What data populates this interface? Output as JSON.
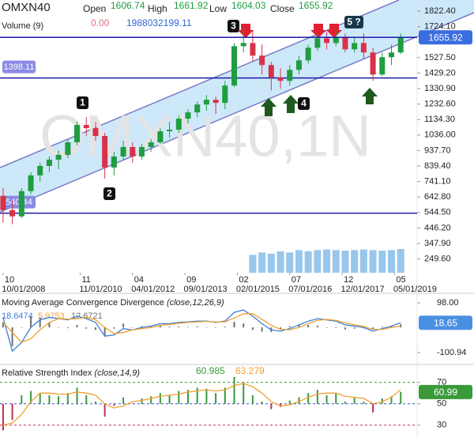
{
  "chart_data": [
    {
      "type": "candlestick",
      "title": "OMXN40",
      "watermark": "OMXN40,1N",
      "header": [
        {
          "label": "Open",
          "value": 1606.74
        },
        {
          "label": "High",
          "value": 1661.92
        },
        {
          "label": "Low",
          "value": 1604.03
        },
        {
          "label": "Close",
          "value": 1655.92
        }
      ],
      "volume_title": "Volume (9)",
      "volume_change": {
        "value": 0,
        "label": "0.00"
      },
      "x": [
        "2008-10",
        "2009-01",
        "2009-04",
        "2009-07",
        "2009-10",
        "2010-01",
        "2010-04",
        "2010-07",
        "2010-10",
        "2011-01",
        "2011-04",
        "2011-07",
        "2011-10",
        "2012-01",
        "2012-04",
        "2012-07",
        "2012-10",
        "2013-01",
        "2013-04",
        "2013-07",
        "2013-10",
        "2014-01",
        "2014-04",
        "2014-07",
        "2014-10",
        "2015-01",
        "2015-04",
        "2015-07",
        "2015-10",
        "2016-01",
        "2016-04",
        "2016-07",
        "2016-10",
        "2017-01",
        "2017-04",
        "2017-07",
        "2017-10",
        "2018-01",
        "2018-04",
        "2018-07",
        "2018-10",
        "2019-01",
        "2019-04",
        "2019-07"
      ],
      "open": [
        650,
        560,
        520,
        680,
        780,
        840,
        880,
        910,
        990,
        1100,
        1080,
        1030,
        830,
        900,
        960,
        900,
        960,
        990,
        1060,
        1070,
        1140,
        1180,
        1230,
        1260,
        1240,
        1350,
        1600,
        1620,
        1540,
        1480,
        1400,
        1380,
        1450,
        1510,
        1590,
        1650,
        1620,
        1660,
        1580,
        1620,
        1560,
        1420,
        1530,
        1560
      ],
      "high": [
        700,
        620,
        700,
        800,
        860,
        900,
        940,
        1010,
        1120,
        1150,
        1120,
        1050,
        930,
        1000,
        990,
        980,
        1010,
        1080,
        1120,
        1160,
        1200,
        1250,
        1290,
        1280,
        1380,
        1620,
        1720,
        1700,
        1610,
        1500,
        1460,
        1480,
        1540,
        1610,
        1680,
        1690,
        1700,
        1680,
        1660,
        1680,
        1590,
        1560,
        1610,
        1680
      ],
      "low": [
        480,
        470,
        510,
        660,
        740,
        800,
        820,
        890,
        970,
        1030,
        1000,
        760,
        780,
        880,
        860,
        880,
        930,
        980,
        1020,
        1050,
        1110,
        1150,
        1190,
        1170,
        1200,
        1340,
        1560,
        1500,
        1420,
        1320,
        1330,
        1350,
        1420,
        1490,
        1570,
        1580,
        1600,
        1560,
        1560,
        1520,
        1380,
        1410,
        1480,
        1550
      ],
      "close": [
        560,
        520,
        680,
        780,
        840,
        880,
        910,
        990,
        1100,
        1080,
        1030,
        830,
        900,
        960,
        900,
        960,
        990,
        1060,
        1070,
        1140,
        1180,
        1230,
        1260,
        1240,
        1350,
        1600,
        1620,
        1540,
        1480,
        1400,
        1380,
        1450,
        1510,
        1590,
        1650,
        1620,
        1660,
        1580,
        1620,
        1560,
        1420,
        1530,
        1560,
        1655.92
      ],
      "volume": [
        null,
        null,
        null,
        null,
        null,
        null,
        null,
        null,
        null,
        null,
        null,
        null,
        null,
        null,
        null,
        null,
        null,
        null,
        null,
        null,
        null,
        null,
        null,
        null,
        null,
        null,
        null,
        1500000000,
        1700000000,
        1600000000,
        1800000000,
        1700000000,
        1900000000,
        1800000000,
        1900000000,
        1950000000,
        1900000000,
        1850000000,
        1900000000,
        1950000000,
        1900000000,
        1850000000,
        1900000000,
        1988032199.11
      ],
      "up_color": "#1f9d3f",
      "down_color": "#d6334a",
      "volume_color": "#7fb8e6",
      "line_color": "#1a1aa8",
      "label_color": "#8a8ae6",
      "price_lines": [
        1398.11,
        540.44
      ],
      "annotations": [
        "1",
        "2",
        "3",
        "4",
        "5 ?"
      ],
      "xlim": [
        "2008-09",
        "2019-09"
      ],
      "xticks": [
        {
          "value": "2008-10",
          "label": "10/01/2008"
        },
        {
          "value": "2010-11",
          "label": "11/01/2010"
        },
        {
          "value": "2012-04",
          "label": "04/01/2012"
        },
        {
          "value": "2013-09",
          "label": "09/01/2013"
        },
        {
          "value": "2015-02",
          "label": "02/01/2015"
        },
        {
          "value": "2016-07",
          "label": "07/01/2016"
        },
        {
          "value": "2017-12",
          "label": "12/01/2017"
        },
        {
          "value": "2019-05",
          "label": "05/01/2019"
        }
      ],
      "xticks_month": [
        {
          "value": "2008-10",
          "label": "10"
        },
        {
          "value": "2010-11",
          "label": "11"
        },
        {
          "value": "2012-04",
          "label": "04"
        },
        {
          "value": "2013-09",
          "label": "09"
        },
        {
          "value": "2015-02",
          "label": "02"
        },
        {
          "value": "2016-07",
          "label": "07"
        },
        {
          "value": "2017-12",
          "label": "12"
        },
        {
          "value": "2019-05",
          "label": "05"
        }
      ],
      "ylim": [
        162,
        1893
      ],
      "yticks": [
        {
          "value": 1822.4,
          "label": "1822.40"
        },
        {
          "value": 1724.1,
          "label": "1724.10"
        },
        {
          "value": 1527.5,
          "label": "1527.50"
        },
        {
          "value": 1429.2,
          "label": "1429.20"
        },
        {
          "value": 1330.9,
          "label": "1330.90"
        },
        {
          "value": 1232.6,
          "label": "1232.60"
        },
        {
          "value": 1134.3,
          "label": "1134.30"
        },
        {
          "value": 1036,
          "label": "1036.00"
        },
        {
          "value": 937.7,
          "label": "937.70"
        },
        {
          "value": 839.4,
          "label": "839.40"
        },
        {
          "value": 741.1,
          "label": "741.10"
        },
        {
          "value": 642.8,
          "label": "642.80"
        },
        {
          "value": 544.5,
          "label": "544.50"
        },
        {
          "value": 446.2,
          "label": "446.20"
        },
        {
          "value": 347.9,
          "label": "347.90"
        },
        {
          "value": 249.6,
          "label": "249.60"
        }
      ]
    },
    {
      "type": "macd",
      "title": "Moving Average Convergence Divergence",
      "params": "(close,12,26,9)",
      "series": [
        {
          "name": "MACD",
          "color": "#3b7fd9",
          "values": [
            40,
            -95,
            -60,
            0,
            30,
            40,
            35,
            30,
            45,
            35,
            20,
            -35,
            -30,
            -5,
            -10,
            0,
            5,
            15,
            15,
            20,
            22,
            25,
            25,
            20,
            25,
            60,
            70,
            45,
            15,
            -10,
            -15,
            -5,
            10,
            25,
            35,
            30,
            25,
            10,
            5,
            0,
            -15,
            -5,
            5,
            18.6474
          ]
        },
        {
          "name": "Signal",
          "color": "#f0a030",
          "values": [
            20,
            -20,
            -60,
            -45,
            -10,
            20,
            35,
            33,
            35,
            40,
            30,
            0,
            -25,
            -20,
            -10,
            -5,
            0,
            8,
            12,
            16,
            20,
            22,
            24,
            22,
            22,
            38,
            55,
            55,
            32,
            8,
            -8,
            -10,
            0,
            15,
            28,
            32,
            28,
            18,
            10,
            4,
            -8,
            -8,
            0,
            5.9753
          ]
        },
        {
          "name": "Histogram",
          "color": "#707070",
          "values": [
            20,
            -75,
            0,
            45,
            40,
            20,
            0,
            -3,
            10,
            -5,
            -10,
            -35,
            -5,
            15,
            0,
            5,
            5,
            7,
            3,
            4,
            2,
            3,
            1,
            -2,
            3,
            22,
            15,
            -10,
            -17,
            -18,
            -7,
            5,
            10,
            10,
            7,
            -2,
            -3,
            -8,
            -5,
            -4,
            -7,
            3,
            5,
            12.6721
          ]
        }
      ],
      "current_value": {
        "value": 18.6474,
        "label": "18.65"
      },
      "box_color": "#4a90e2",
      "ylim": [
        -145,
        133
      ],
      "yticks": [
        {
          "value": 98,
          "label": "98.00"
        },
        {
          "value": -100.94,
          "label": "-100.94"
        }
      ]
    },
    {
      "type": "rsi",
      "title": "Relative Strength Index",
      "params": "(close,14,9)",
      "series": [
        {
          "name": "RSI",
          "color": "#3a9a3a",
          "values": [
            25,
            35,
            58,
            62,
            60,
            58,
            57,
            60,
            65,
            58,
            52,
            38,
            48,
            56,
            50,
            55,
            57,
            60,
            58,
            62,
            63,
            65,
            64,
            60,
            65,
            75,
            70,
            58,
            52,
            45,
            47,
            53,
            56,
            60,
            63,
            58,
            60,
            52,
            56,
            52,
            42,
            55,
            57,
            60.985
          ]
        },
        {
          "name": "MA",
          "color": "#f0a030",
          "values": [
            30,
            32,
            40,
            52,
            60,
            60,
            59,
            59,
            61,
            60,
            58,
            50,
            46,
            48,
            52,
            53,
            55,
            57,
            58,
            59,
            61,
            62,
            63,
            62,
            63,
            67,
            69,
            66,
            60,
            52,
            48,
            49,
            52,
            56,
            59,
            60,
            60,
            57,
            56,
            55,
            50,
            52,
            56,
            63.279
          ]
        }
      ],
      "down_color": "#c03050",
      "bar_base": 50,
      "levels": [
        {
          "value": 70,
          "color": "#3a9a3a"
        },
        {
          "value": 50,
          "color": "#3355cc"
        },
        {
          "value": 30,
          "color": "#c03050"
        }
      ],
      "current_value": {
        "value": 60.985,
        "label": "60.99"
      },
      "box_color": "#3a9a3a",
      "ylim": [
        18,
        86
      ],
      "yticks": [
        70,
        50,
        30
      ]
    }
  ]
}
